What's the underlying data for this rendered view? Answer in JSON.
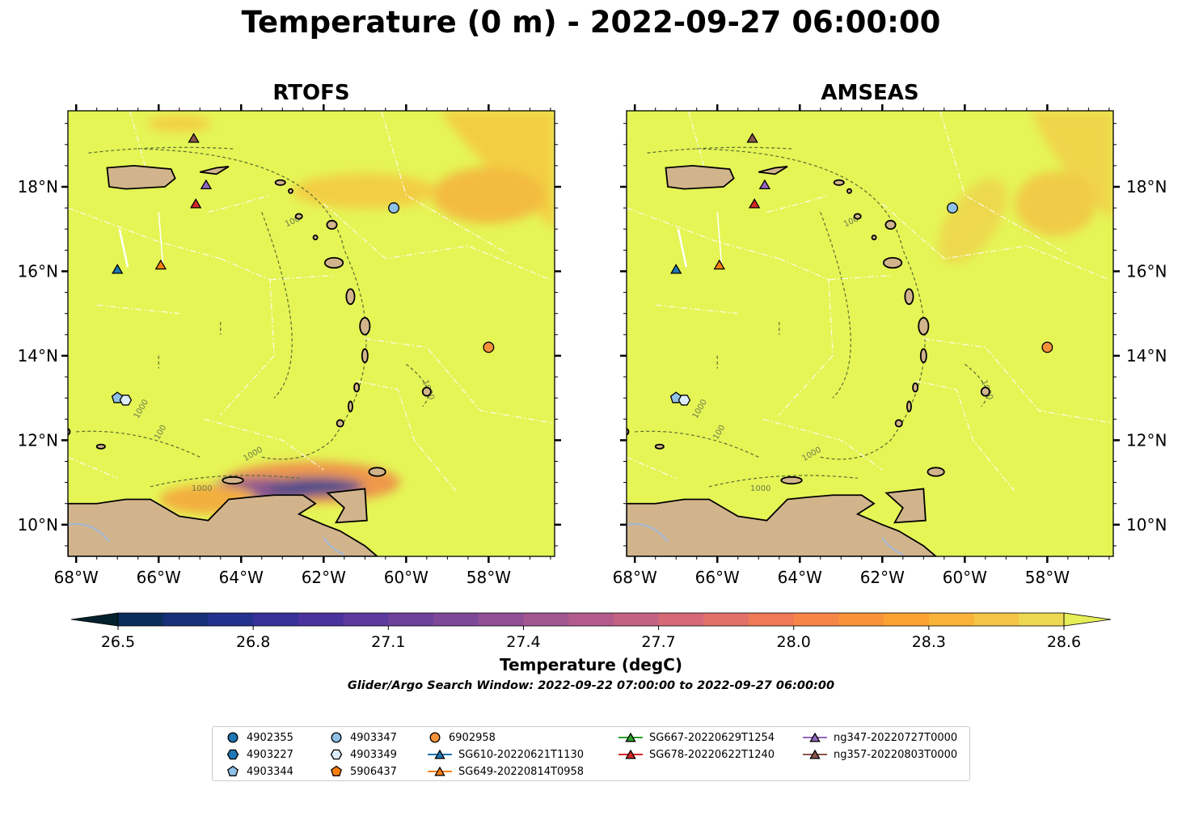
{
  "title": "Temperature (0 m) - 2022-09-27 06:00:00",
  "panels": [
    {
      "title": "RTOFS",
      "model": "rtofs"
    },
    {
      "title": "AMSEAS",
      "model": "amseas"
    }
  ],
  "map": {
    "lon_range": [
      -68.2,
      -56.4
    ],
    "lat_range": [
      9.25,
      19.8
    ],
    "lon_ticks": [
      {
        "v": -68,
        "label": "68°W"
      },
      {
        "v": -66,
        "label": "66°W"
      },
      {
        "v": -64,
        "label": "64°W"
      },
      {
        "v": -62,
        "label": "62°W"
      },
      {
        "v": -60,
        "label": "60°W"
      },
      {
        "v": -58,
        "label": "58°W"
      }
    ],
    "lat_ticks": [
      {
        "v": 10,
        "label": "10°N"
      },
      {
        "v": 12,
        "label": "12°N"
      },
      {
        "v": 14,
        "label": "14°N"
      },
      {
        "v": 16,
        "label": "16°N"
      },
      {
        "v": 18,
        "label": "18°N"
      }
    ],
    "contour_labels": [
      "100",
      "1000"
    ],
    "colors": {
      "land": "#d2b48c",
      "ocean_base": "#e5f556",
      "contour": "#5a6e30"
    }
  },
  "colorbar": {
    "min": 26.5,
    "max": 28.6,
    "ticks": [
      {
        "v": 26.5,
        "label": "26.5"
      },
      {
        "v": 26.8,
        "label": "26.8"
      },
      {
        "v": 27.1,
        "label": "27.1"
      },
      {
        "v": 27.4,
        "label": "27.4"
      },
      {
        "v": 27.7,
        "label": "27.7"
      },
      {
        "v": 28.0,
        "label": "28.0"
      },
      {
        "v": 28.3,
        "label": "28.3"
      },
      {
        "v": 28.6,
        "label": "28.6"
      }
    ],
    "label": "Temperature (degC)",
    "colors": [
      "#03212d",
      "#0a2d5b",
      "#162f78",
      "#24318d",
      "#38319a",
      "#4b339e",
      "#5c3a9e",
      "#6d419c",
      "#7e4899",
      "#914f96",
      "#a25692",
      "#b35c8c",
      "#c46283",
      "#d56978",
      "#e2716a",
      "#ee7a58",
      "#f58648",
      "#f99339",
      "#fba232",
      "#f9b338",
      "#f4c546",
      "#edd852",
      "#e6ee58"
    ]
  },
  "search_window": "Glider/Argo Search Window: 2022-09-22 07:00:00 to 2022-09-27 06:00:00",
  "platforms": [
    {
      "id": "4902355",
      "marker": "circle",
      "color": "#1f77b4",
      "lon": null,
      "lat": null
    },
    {
      "id": "4903227",
      "marker": "hexagon",
      "color": "#1f77b4",
      "lon": null,
      "lat": null
    },
    {
      "id": "4903344",
      "marker": "pentagon",
      "color": "#8fc0e6",
      "lon": -67.0,
      "lat": 13.0
    },
    {
      "id": "4903347",
      "marker": "circle",
      "color": "#8fc0e6",
      "lon": -60.3,
      "lat": 17.5
    },
    {
      "id": "4903349",
      "marker": "hexagon",
      "color": "#dcecf8",
      "lon": -66.8,
      "lat": 12.95
    },
    {
      "id": "5906437",
      "marker": "pentagon",
      "color": "#ff7f0e",
      "lon": null,
      "lat": null
    },
    {
      "id": "6902958",
      "marker": "circle",
      "color": "#f5913a",
      "lon": -58.0,
      "lat": 14.2
    },
    {
      "id": "SG610-20220621T1130",
      "marker": "triangle",
      "color": "#1f77b4",
      "lon": -67.0,
      "lat": 16.05
    },
    {
      "id": "SG649-20220814T0958",
      "marker": "triangle",
      "color": "#ff7f0e",
      "lon": -65.95,
      "lat": 16.15
    },
    {
      "id": "SG667-20220629T1254",
      "marker": "triangle",
      "color": "#2ca02c",
      "lon": null,
      "lat": null
    },
    {
      "id": "SG678-20220622T1240",
      "marker": "triangle",
      "color": "#d62728",
      "lon": -65.1,
      "lat": 17.6
    },
    {
      "id": "ng347-20220727T0000",
      "marker": "triangle",
      "color": "#9467bd",
      "lon": -64.85,
      "lat": 18.05
    },
    {
      "id": "ng357-20220803T0000",
      "marker": "triangle",
      "color": "#8c564b",
      "lon": -65.15,
      "lat": 19.15
    }
  ]
}
